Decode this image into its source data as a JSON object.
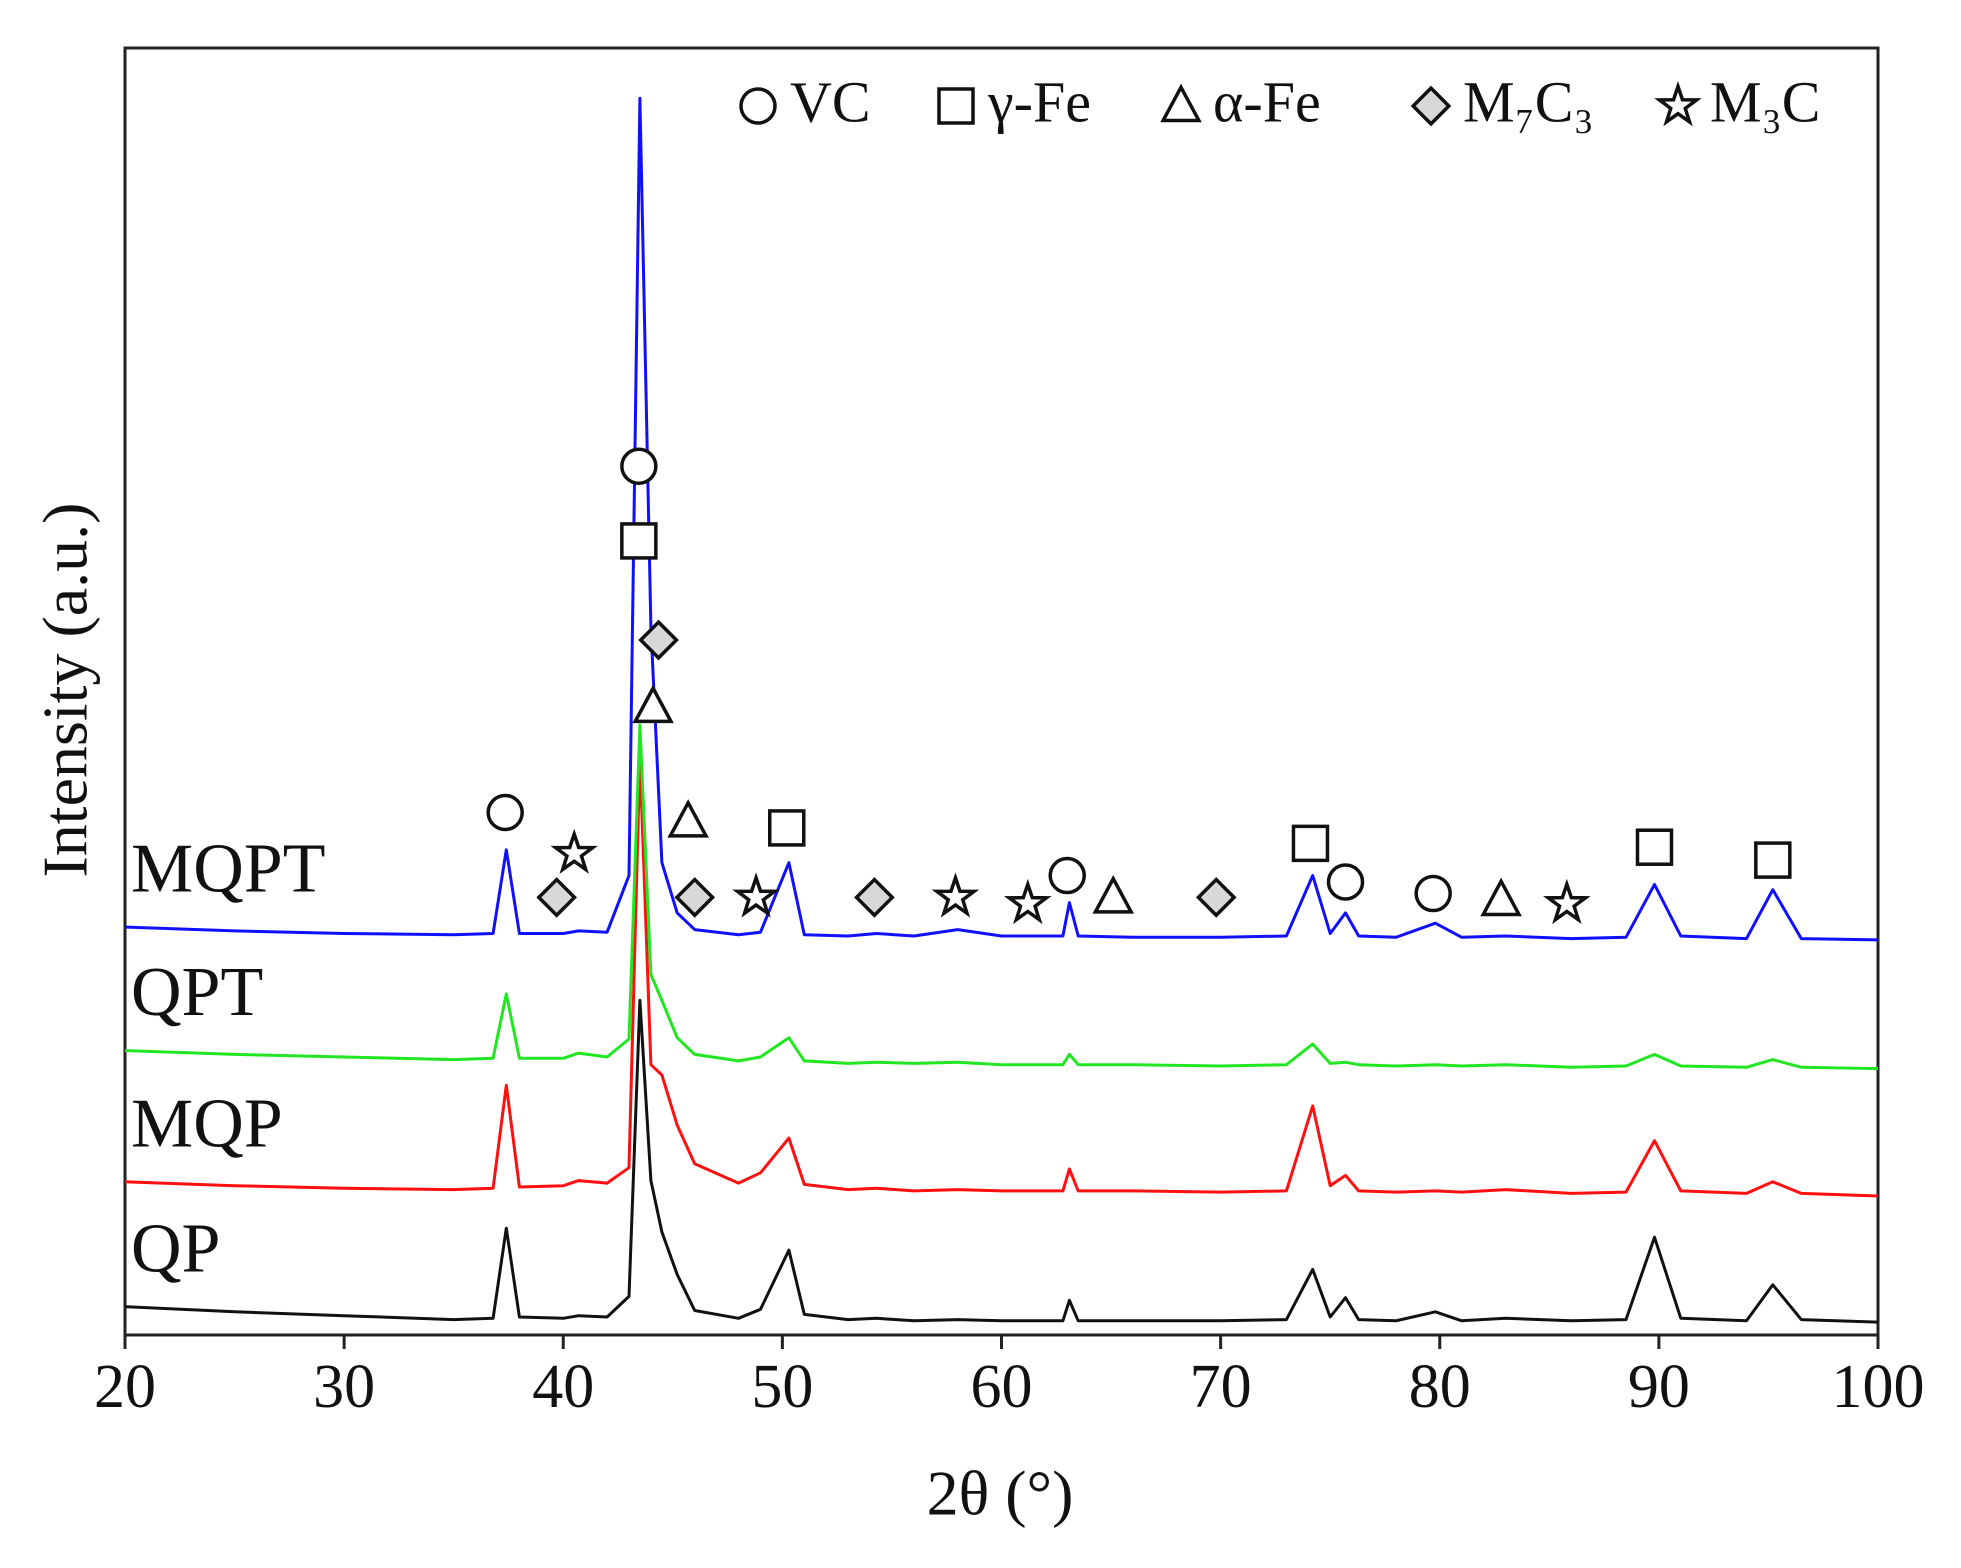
{
  "chart_data": {
    "type": "line",
    "xlabel": "2θ (°)",
    "ylabel": "Intensity (a.u.)",
    "xlim": [
      20,
      100
    ],
    "xticks": [
      20,
      30,
      40,
      50,
      60,
      70,
      80,
      90,
      100
    ],
    "ylim": [
      0,
      100
    ],
    "x": [
      20,
      25,
      30,
      35,
      36.8,
      37.4,
      38,
      40,
      40.7,
      42,
      43,
      43.5,
      44,
      44.5,
      45.2,
      46,
      48,
      49,
      50.3,
      51,
      53,
      54.3,
      56,
      58,
      60,
      62.8,
      63.1,
      63.5,
      66,
      70,
      73,
      74.2,
      75,
      75.7,
      76.3,
      78,
      79.8,
      81,
      83,
      86,
      88.5,
      89.8,
      91,
      94,
      95.2,
      96.5,
      100
    ],
    "series": [
      {
        "name": "QP",
        "color": "#111111",
        "values": [
          2.2,
          1.8,
          1.5,
          1.2,
          1.3,
          8.3,
          1.4,
          1.3,
          1.5,
          1.4,
          3.0,
          26,
          12,
          8,
          4.7,
          1.9,
          1.3,
          2.0,
          6.6,
          1.6,
          1.2,
          1.3,
          1.1,
          1.2,
          1.1,
          1.1,
          2.7,
          1.1,
          1.1,
          1.1,
          1.2,
          5.1,
          1.4,
          2.9,
          1.2,
          1.1,
          1.8,
          1.1,
          1.3,
          1.1,
          1.2,
          7.6,
          1.3,
          1.1,
          3.9,
          1.2,
          1.0
        ]
      },
      {
        "name": "MQP",
        "color": "#ff1010",
        "values": [
          11.9,
          11.6,
          11.4,
          11.3,
          11.4,
          19.4,
          11.5,
          11.6,
          12.0,
          11.8,
          13.0,
          45,
          21,
          20.2,
          16.3,
          13.3,
          11.8,
          12.6,
          15.3,
          11.7,
          11.3,
          11.4,
          11.2,
          11.3,
          11.2,
          11.2,
          12.9,
          11.2,
          11.2,
          11.1,
          11.2,
          17.8,
          11.6,
          12.4,
          11.2,
          11.1,
          11.2,
          11.1,
          11.3,
          11.0,
          11.1,
          15.1,
          11.2,
          11.0,
          11.9,
          11.0,
          10.8
        ]
      },
      {
        "name": "QPT",
        "color": "#22e622",
        "values": [
          22.1,
          21.8,
          21.6,
          21.4,
          21.5,
          26.5,
          21.5,
          21.5,
          21.9,
          21.6,
          23.0,
          47.4,
          28,
          26,
          23.1,
          21.8,
          21.3,
          21.6,
          23.1,
          21.3,
          21.1,
          21.2,
          21.1,
          21.2,
          21.0,
          21.0,
          21.8,
          21.0,
          21.0,
          20.9,
          21.0,
          22.6,
          21.1,
          21.2,
          21.0,
          20.9,
          21.0,
          20.9,
          21.0,
          20.8,
          20.9,
          21.8,
          20.9,
          20.8,
          21.4,
          20.8,
          20.7
        ]
      },
      {
        "name": "MQPT",
        "color": "#1010ff",
        "values": [
          31.7,
          31.4,
          31.2,
          31.1,
          31.2,
          37.7,
          31.2,
          31.2,
          31.4,
          31.3,
          35.7,
          96.1,
          55,
          36.7,
          32.8,
          31.5,
          31.1,
          31.3,
          36.7,
          31.1,
          31.0,
          31.2,
          31.0,
          31.5,
          31.0,
          31.0,
          33.6,
          31.0,
          30.9,
          30.9,
          31.0,
          35.7,
          31.2,
          32.8,
          31.0,
          30.9,
          32.0,
          30.9,
          31.0,
          30.8,
          30.9,
          35.0,
          31.0,
          30.8,
          34.6,
          30.8,
          30.7
        ]
      }
    ],
    "legend": [
      {
        "label": "VC",
        "shape": "circle"
      },
      {
        "label": "γ-Fe",
        "shape": "square"
      },
      {
        "label": "α-Fe",
        "shape": "triangle"
      },
      {
        "label": "M₇C₃",
        "shape": "diamond"
      },
      {
        "label": "M₃C",
        "shape": "star"
      }
    ],
    "markers": [
      {
        "phase": 0,
        "x": 37.35,
        "y": 40.6
      },
      {
        "phase": 4,
        "x": 40.5,
        "y": 37.4
      },
      {
        "phase": 3,
        "x": 39.7,
        "y": 34.0
      },
      {
        "phase": 0,
        "x": 43.45,
        "y": 67.5
      },
      {
        "phase": 1,
        "x": 43.45,
        "y": 61.7
      },
      {
        "phase": 3,
        "x": 44.35,
        "y": 54.0
      },
      {
        "phase": 2,
        "x": 44.1,
        "y": 48.8
      },
      {
        "phase": 2,
        "x": 45.7,
        "y": 39.9
      },
      {
        "phase": 3,
        "x": 46.0,
        "y": 34.0
      },
      {
        "phase": 4,
        "x": 48.8,
        "y": 34.0
      },
      {
        "phase": 1,
        "x": 50.2,
        "y": 39.4
      },
      {
        "phase": 3,
        "x": 54.2,
        "y": 34.0
      },
      {
        "phase": 4,
        "x": 57.9,
        "y": 34.0
      },
      {
        "phase": 4,
        "x": 61.2,
        "y": 33.5
      },
      {
        "phase": 0,
        "x": 63.0,
        "y": 35.7
      },
      {
        "phase": 2,
        "x": 65.1,
        "y": 34.0
      },
      {
        "phase": 3,
        "x": 69.8,
        "y": 34.0
      },
      {
        "phase": 1,
        "x": 74.1,
        "y": 38.2
      },
      {
        "phase": 0,
        "x": 75.7,
        "y": 35.2
      },
      {
        "phase": 0,
        "x": 79.7,
        "y": 34.3
      },
      {
        "phase": 2,
        "x": 82.8,
        "y": 33.8
      },
      {
        "phase": 4,
        "x": 85.8,
        "y": 33.5
      },
      {
        "phase": 1,
        "x": 89.8,
        "y": 37.9
      },
      {
        "phase": 1,
        "x": 95.2,
        "y": 36.9
      }
    ]
  }
}
